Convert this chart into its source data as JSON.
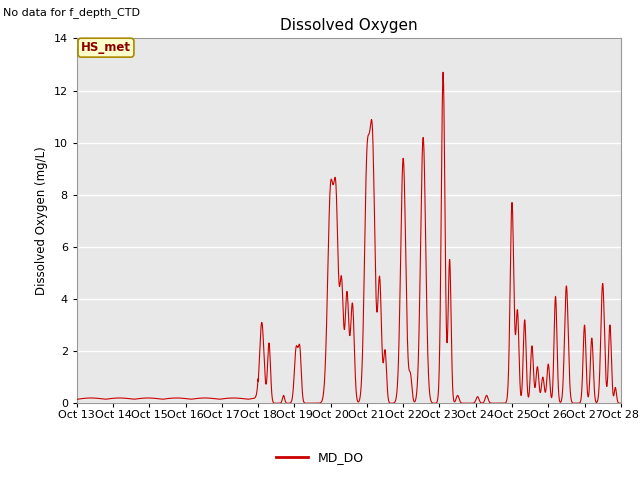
{
  "title": "Dissolved Oxygen",
  "ylabel": "Dissolved Oxygen (mg/L)",
  "no_data_text": "No data for f_depth_CTD",
  "hs_met_label": "HS_met",
  "legend_label": "MD_DO",
  "ylim": [
    0,
    14
  ],
  "line_color": "#cc0000",
  "plot_bg_color": "#e8e8e8",
  "xtick_labels": [
    "Oct 13",
    "Oct 14",
    "Oct 15",
    "Oct 16",
    "Oct 17",
    "Oct 18",
    "Oct 19",
    "Oct 20",
    "Oct 21",
    "Oct 22",
    "Oct 23",
    "Oct 24",
    "Oct 25",
    "Oct 26",
    "Oct 27",
    "Oct 28"
  ],
  "ytick_values": [
    0,
    2,
    4,
    6,
    8,
    10,
    12,
    14
  ]
}
